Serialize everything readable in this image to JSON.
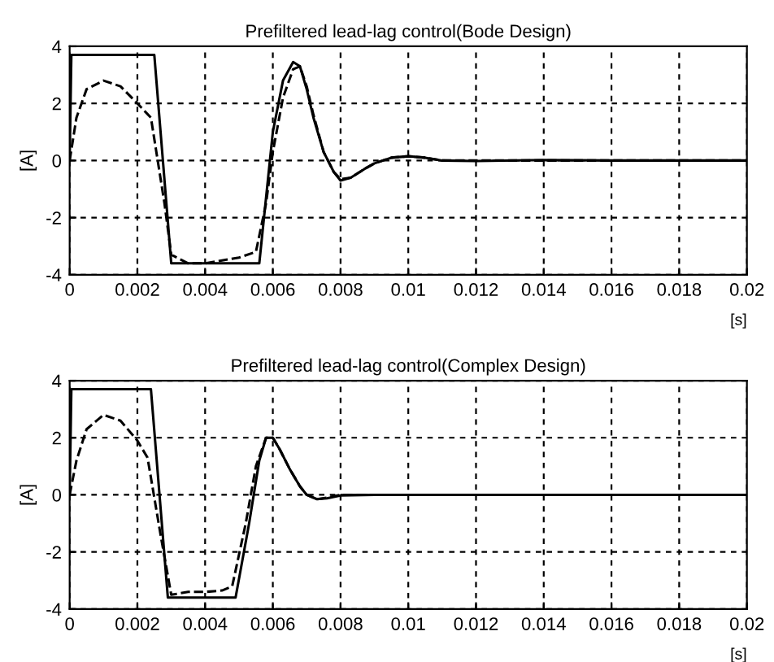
{
  "chart_data": [
    {
      "type": "line",
      "title": "Prefiltered lead-lag control(Bode Design)",
      "xlabel": "[s]",
      "ylabel": "[A]",
      "xlim": [
        0,
        0.02
      ],
      "ylim": [
        -4,
        4
      ],
      "xticks": [
        0,
        0.002,
        0.004,
        0.006,
        0.008,
        0.01,
        0.012,
        0.014,
        0.016,
        0.018,
        0.02
      ],
      "yticks": [
        -4,
        -2,
        0,
        2,
        4
      ],
      "grid": true,
      "series": [
        {
          "color": "#000000",
          "line_style": "solid",
          "x": [
            0,
            5e-05,
            0.0025,
            0.003,
            0.0056,
            0.006,
            0.0063,
            0.0066,
            0.0068,
            0.007,
            0.0072,
            0.0075,
            0.0078,
            0.008,
            0.0083,
            0.0087,
            0.009,
            0.0095,
            0.01,
            0.0105,
            0.011,
            0.012,
            0.014,
            0.016,
            0.02
          ],
          "values": [
            0,
            3.7,
            3.7,
            -3.6,
            -3.6,
            1.0,
            2.8,
            3.45,
            3.3,
            2.5,
            1.5,
            0.3,
            -0.4,
            -0.7,
            -0.6,
            -0.3,
            -0.1,
            0.1,
            0.15,
            0.1,
            0.0,
            -0.02,
            0.02,
            0,
            0
          ]
        },
        {
          "color": "#000000",
          "line_style": "dashed",
          "x": [
            0,
            0.0002,
            0.0005,
            0.001,
            0.0015,
            0.002,
            0.0024,
            0.0028,
            0.003,
            0.0035,
            0.004,
            0.0045,
            0.005,
            0.0055,
            0.0058,
            0.006,
            0.0063,
            0.0066,
            0.0068,
            0.007,
            0.0072,
            0.0075,
            0.0078,
            0.008,
            0.0083,
            0.0087,
            0.009,
            0.0095,
            0.01,
            0.0105,
            0.011,
            0.02
          ],
          "values": [
            0,
            1.5,
            2.5,
            2.8,
            2.6,
            2.0,
            1.5,
            -1.5,
            -3.3,
            -3.6,
            -3.6,
            -3.5,
            -3.4,
            -3.2,
            -1.5,
            0.3,
            2.2,
            3.2,
            3.3,
            2.6,
            1.6,
            0.3,
            -0.4,
            -0.65,
            -0.6,
            -0.3,
            -0.1,
            0.1,
            0.15,
            0.1,
            0,
            0
          ]
        }
      ]
    },
    {
      "type": "line",
      "title": "Prefiltered lead-lag control(Complex Design)",
      "xlabel": "[s]",
      "ylabel": "[A]",
      "xlim": [
        0,
        0.02
      ],
      "ylim": [
        -4,
        4
      ],
      "xticks": [
        0,
        0.002,
        0.004,
        0.006,
        0.008,
        0.01,
        0.012,
        0.014,
        0.016,
        0.018,
        0.02
      ],
      "yticks": [
        -4,
        -2,
        0,
        2,
        4
      ],
      "grid": true,
      "series": [
        {
          "color": "#000000",
          "line_style": "solid",
          "x": [
            0,
            5e-05,
            0.0024,
            0.0029,
            0.0049,
            0.0053,
            0.0056,
            0.0058,
            0.006,
            0.0062,
            0.0065,
            0.0068,
            0.007,
            0.0073,
            0.0076,
            0.008,
            0.009,
            0.02
          ],
          "values": [
            0,
            3.7,
            3.7,
            -3.6,
            -3.6,
            -1.0,
            1.2,
            2.0,
            2.0,
            1.6,
            0.9,
            0.3,
            0.0,
            -0.15,
            -0.12,
            -0.02,
            0,
            0
          ]
        },
        {
          "color": "#000000",
          "line_style": "dashed",
          "x": [
            0,
            0.0002,
            0.0005,
            0.001,
            0.0015,
            0.002,
            0.0023,
            0.0027,
            0.003,
            0.0035,
            0.004,
            0.0045,
            0.0048,
            0.0052,
            0.0055,
            0.0058,
            0.006,
            0.0062,
            0.0065,
            0.0068,
            0.007,
            0.0073,
            0.0076,
            0.008,
            0.02
          ],
          "values": [
            0,
            1.2,
            2.3,
            2.8,
            2.6,
            1.9,
            1.3,
            -1.5,
            -3.5,
            -3.4,
            -3.4,
            -3.35,
            -3.2,
            -1.0,
            1.0,
            2.0,
            2.0,
            1.6,
            0.9,
            0.3,
            0,
            -0.15,
            -0.1,
            0,
            0
          ]
        }
      ]
    }
  ]
}
